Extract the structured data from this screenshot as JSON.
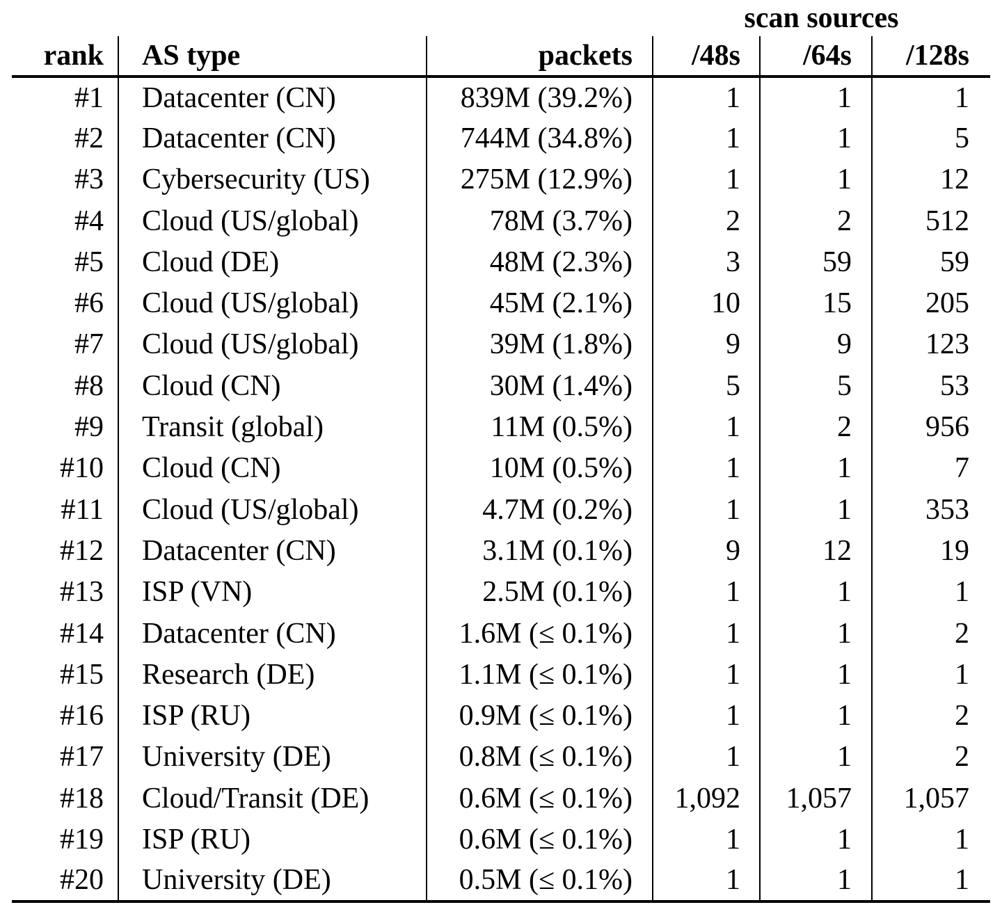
{
  "table": {
    "spanner": "scan sources",
    "columns": [
      {
        "label": "rank"
      },
      {
        "label": "AS type"
      },
      {
        "label": "packets"
      },
      {
        "label": "/48s"
      },
      {
        "label": "/64s"
      },
      {
        "label": "/128s"
      }
    ],
    "rows": [
      [
        "#1",
        "Datacenter (CN)",
        "839M (39.2%)",
        "1",
        "1",
        "1"
      ],
      [
        "#2",
        "Datacenter (CN)",
        "744M (34.8%)",
        "1",
        "1",
        "5"
      ],
      [
        "#3",
        "Cybersecurity (US)",
        "275M (12.9%)",
        "1",
        "1",
        "12"
      ],
      [
        "#4",
        "Cloud (US/global)",
        "78M (3.7%)",
        "2",
        "2",
        "512"
      ],
      [
        "#5",
        "Cloud (DE)",
        "48M (2.3%)",
        "3",
        "59",
        "59"
      ],
      [
        "#6",
        "Cloud (US/global)",
        "45M (2.1%)",
        "10",
        "15",
        "205"
      ],
      [
        "#7",
        "Cloud (US/global)",
        "39M (1.8%)",
        "9",
        "9",
        "123"
      ],
      [
        "#8",
        "Cloud (CN)",
        "30M (1.4%)",
        "5",
        "5",
        "53"
      ],
      [
        "#9",
        "Transit (global)",
        "11M (0.5%)",
        "1",
        "2",
        "956"
      ],
      [
        "#10",
        "Cloud (CN)",
        "10M (0.5%)",
        "1",
        "1",
        "7"
      ],
      [
        "#11",
        "Cloud (US/global)",
        "4.7M (0.2%)",
        "1",
        "1",
        "353"
      ],
      [
        "#12",
        "Datacenter (CN)",
        "3.1M (0.1%)",
        "9",
        "12",
        "19"
      ],
      [
        "#13",
        "ISP (VN)",
        "2.5M (0.1%)",
        "1",
        "1",
        "1"
      ],
      [
        "#14",
        "Datacenter (CN)",
        "1.6M (≤ 0.1%)",
        "1",
        "1",
        "2"
      ],
      [
        "#15",
        "Research (DE)",
        "1.1M (≤ 0.1%)",
        "1",
        "1",
        "1"
      ],
      [
        "#16",
        "ISP (RU)",
        "0.9M (≤ 0.1%)",
        "1",
        "1",
        "2"
      ],
      [
        "#17",
        "University (DE)",
        "0.8M (≤ 0.1%)",
        "1",
        "1",
        "2"
      ],
      [
        "#18",
        "Cloud/Transit (DE)",
        "0.6M (≤ 0.1%)",
        "1,092",
        "1,057",
        "1,057"
      ],
      [
        "#19",
        "ISP (RU)",
        "0.6M (≤ 0.1%)",
        "1",
        "1",
        "1"
      ],
      [
        "#20",
        "University (DE)",
        "0.5M (≤ 0.1%)",
        "1",
        "1",
        "1"
      ]
    ]
  }
}
